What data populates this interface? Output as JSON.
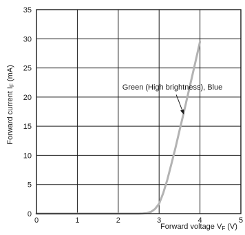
{
  "chart_data": {
    "type": "line",
    "xlabel": {
      "main": "Forward voltage V",
      "sub": "F",
      "unit": " (V)"
    },
    "ylabel": {
      "main": "Forward current I",
      "sub": "F",
      "unit": " (mA)"
    },
    "xlim": [
      0,
      5
    ],
    "ylim": [
      0,
      35
    ],
    "x_ticks": [
      "0",
      "1",
      "2",
      "3",
      "4",
      "5"
    ],
    "y_ticks": [
      "0",
      "5",
      "10",
      "15",
      "20",
      "25",
      "30",
      "35"
    ],
    "grid": true,
    "series": [
      {
        "name": "Green (High brightness), Blue",
        "color": "#b3b3b3",
        "x": [
          0,
          2.5,
          2.6,
          2.7,
          2.8,
          2.9,
          3.0,
          3.1,
          3.2,
          3.3,
          3.4,
          3.5,
          3.6,
          3.7,
          3.8,
          3.9,
          4.0
        ],
        "y": [
          0,
          0,
          0.02,
          0.1,
          0.3,
          0.8,
          1.7,
          3.5,
          5.8,
          8.5,
          11.3,
          14.3,
          17.2,
          20.3,
          23.3,
          26.4,
          29.5
        ]
      }
    ],
    "annotation": {
      "text": "Green (High brightness), Blue",
      "x": 2.1,
      "y": 21.3,
      "arrow_to": [
        3.6,
        17.1
      ]
    }
  }
}
